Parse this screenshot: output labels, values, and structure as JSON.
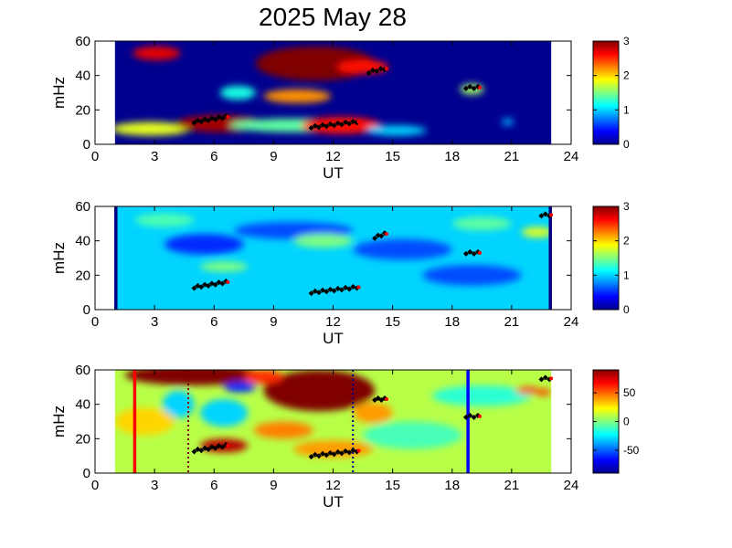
{
  "title": "2025 May 28",
  "chart_data": [
    {
      "type": "heatmap",
      "panel": "top",
      "xlabel": "UT",
      "ylabel": "mHz",
      "xlim": [
        0,
        24
      ],
      "ylim": [
        0,
        60
      ],
      "xticks": [
        0,
        3,
        6,
        9,
        12,
        15,
        18,
        21,
        24
      ],
      "yticks": [
        0,
        20,
        40,
        60
      ],
      "data_x_range": [
        1,
        23
      ],
      "colorbar": {
        "range": [
          0,
          3
        ],
        "ticks": [
          0,
          1,
          2,
          3
        ],
        "colormap": "jet"
      },
      "background_level": 0,
      "blobs": [
        {
          "x": 3.1,
          "y": 53,
          "rx": 1.2,
          "ry": 4,
          "level": 2.7
        },
        {
          "x": 2.8,
          "y": 9,
          "rx": 2.0,
          "ry": 4,
          "level": 1.8
        },
        {
          "x": 6.3,
          "y": 12,
          "rx": 2.2,
          "ry": 5,
          "level": 2.9
        },
        {
          "x": 10,
          "y": 11,
          "rx": 3.2,
          "ry": 4,
          "level": 1.4
        },
        {
          "x": 12.4,
          "y": 11,
          "rx": 2.0,
          "ry": 5,
          "level": 2.6
        },
        {
          "x": 15.2,
          "y": 8,
          "rx": 1.5,
          "ry": 3,
          "level": 1.0
        },
        {
          "x": 7.2,
          "y": 30,
          "rx": 0.9,
          "ry": 4,
          "level": 1.2
        },
        {
          "x": 10.2,
          "y": 28,
          "rx": 1.7,
          "ry": 4,
          "level": 2.2
        },
        {
          "x": 11.1,
          "y": 47,
          "rx": 3.0,
          "ry": 10,
          "level": 3.0
        },
        {
          "x": 13.5,
          "y": 45,
          "rx": 1.3,
          "ry": 4,
          "level": 2.6
        },
        {
          "x": 19,
          "y": 32,
          "rx": 0.6,
          "ry": 3,
          "level": 1.6
        },
        {
          "x": 20.8,
          "y": 13,
          "rx": 0.3,
          "ry": 2,
          "level": 0.9
        }
      ],
      "markers": [
        {
          "x0": 5.0,
          "y0": 13,
          "x1": 6.6,
          "y1": 16
        },
        {
          "x0": 10.9,
          "y0": 10,
          "x1": 13.2,
          "y1": 13
        },
        {
          "x0": 13.8,
          "y0": 42,
          "x1": 14.6,
          "y1": 44
        },
        {
          "x0": 18.7,
          "y0": 33,
          "x1": 19.3,
          "y1": 33
        }
      ],
      "vlines": []
    },
    {
      "type": "heatmap",
      "panel": "middle",
      "xlabel": "UT",
      "ylabel": "mHz",
      "xlim": [
        0,
        24
      ],
      "ylim": [
        0,
        60
      ],
      "xticks": [
        0,
        3,
        6,
        9,
        12,
        15,
        18,
        21,
        24
      ],
      "yticks": [
        0,
        20,
        40,
        60
      ],
      "data_x_range": [
        1,
        23
      ],
      "colorbar": {
        "range": [
          0,
          3
        ],
        "ticks": [
          0,
          1,
          2,
          3
        ],
        "colormap": "jet"
      },
      "background_level": 1.0,
      "blobs": [
        {
          "x": 5.5,
          "y": 38,
          "rx": 2.0,
          "ry": 6,
          "level": 0.5
        },
        {
          "x": 10,
          "y": 46,
          "rx": 3.0,
          "ry": 5,
          "level": 0.6
        },
        {
          "x": 15.5,
          "y": 35,
          "rx": 2.5,
          "ry": 6,
          "level": 0.6
        },
        {
          "x": 19,
          "y": 20,
          "rx": 2.5,
          "ry": 6,
          "level": 0.6
        },
        {
          "x": 6.5,
          "y": 25,
          "rx": 1.2,
          "ry": 3,
          "level": 1.5
        },
        {
          "x": 11.5,
          "y": 40,
          "rx": 1.5,
          "ry": 4,
          "level": 1.5
        },
        {
          "x": 19.5,
          "y": 50,
          "rx": 1.5,
          "ry": 4,
          "level": 1.4
        },
        {
          "x": 22.3,
          "y": 45,
          "rx": 0.8,
          "ry": 3,
          "level": 1.8
        },
        {
          "x": 3.5,
          "y": 52,
          "rx": 1.5,
          "ry": 4,
          "level": 1.35
        }
      ],
      "markers": [
        {
          "x0": 5.0,
          "y0": 13,
          "x1": 6.6,
          "y1": 16
        },
        {
          "x0": 10.9,
          "y0": 10,
          "x1": 13.2,
          "y1": 13
        },
        {
          "x0": 14.1,
          "y0": 42,
          "x1": 14.6,
          "y1": 44
        },
        {
          "x0": 18.7,
          "y0": 33,
          "x1": 19.3,
          "y1": 33
        },
        {
          "x0": 22.5,
          "y0": 55,
          "x1": 22.9,
          "y1": 55
        }
      ],
      "vlines": [
        {
          "x": 1.05,
          "color": "#000080",
          "style": "solid"
        },
        {
          "x": 22.95,
          "color": "#000080",
          "style": "solid"
        }
      ]
    },
    {
      "type": "heatmap",
      "panel": "bottom",
      "xlabel": "UT",
      "ylabel": "mHz",
      "xlim": [
        0,
        24
      ],
      "ylim": [
        0,
        60
      ],
      "xticks": [
        0,
        3,
        6,
        9,
        12,
        15,
        18,
        21,
        24
      ],
      "yticks": [
        0,
        20,
        40,
        60
      ],
      "data_x_range": [
        1,
        23
      ],
      "colorbar": {
        "range": [
          -90,
          90
        ],
        "ticks": [
          50,
          0,
          -50
        ],
        "colormap": "jet"
      },
      "background_level": 10,
      "blobs": [
        {
          "x": 5,
          "y": 57,
          "rx": 3.5,
          "ry": 6,
          "level": 90
        },
        {
          "x": 11.3,
          "y": 48,
          "rx": 2.8,
          "ry": 12,
          "level": 90
        },
        {
          "x": 8.5,
          "y": 56,
          "rx": 1.0,
          "ry": 4,
          "level": 60
        },
        {
          "x": 7.3,
          "y": 50,
          "rx": 0.8,
          "ry": 3,
          "level": -60
        },
        {
          "x": 4.2,
          "y": 40,
          "rx": 0.8,
          "ry": 8,
          "level": -30
        },
        {
          "x": 6.5,
          "y": 35,
          "rx": 1.2,
          "ry": 8,
          "level": -30
        },
        {
          "x": 6.5,
          "y": 16,
          "rx": 1.2,
          "ry": 4,
          "level": 80
        },
        {
          "x": 9.5,
          "y": 25,
          "rx": 1.5,
          "ry": 5,
          "level": 45
        },
        {
          "x": 12,
          "y": 14,
          "rx": 2.0,
          "ry": 5,
          "level": 40
        },
        {
          "x": 16,
          "y": 22,
          "rx": 2.5,
          "ry": 8,
          "level": -10
        },
        {
          "x": 19.5,
          "y": 45,
          "rx": 2.5,
          "ry": 6,
          "level": -15
        },
        {
          "x": 21.8,
          "y": 48,
          "rx": 0.6,
          "ry": 2,
          "level": 60
        },
        {
          "x": 22.6,
          "y": 47,
          "rx": 0.4,
          "ry": 2,
          "level": 55
        },
        {
          "x": 2.5,
          "y": 30,
          "rx": 1.5,
          "ry": 8,
          "level": 30
        },
        {
          "x": 14,
          "y": 35,
          "rx": 1.0,
          "ry": 6,
          "level": 40
        }
      ],
      "markers": [
        {
          "x0": 5.0,
          "y0": 13,
          "x1": 6.6,
          "y1": 16
        },
        {
          "x0": 10.9,
          "y0": 10,
          "x1": 13.2,
          "y1": 13
        },
        {
          "x0": 14.1,
          "y0": 43,
          "x1": 14.6,
          "y1": 43
        },
        {
          "x0": 18.7,
          "y0": 33,
          "x1": 19.3,
          "y1": 33
        },
        {
          "x0": 22.5,
          "y0": 55,
          "x1": 22.9,
          "y1": 55
        }
      ],
      "vlines": [
        {
          "x": 2.0,
          "color": "#ff0000",
          "style": "solid"
        },
        {
          "x": 4.7,
          "color": "#800000",
          "style": "dotted"
        },
        {
          "x": 13.0,
          "color": "#000080",
          "style": "dotted"
        },
        {
          "x": 18.8,
          "color": "#0000ff",
          "style": "solid"
        }
      ]
    }
  ]
}
